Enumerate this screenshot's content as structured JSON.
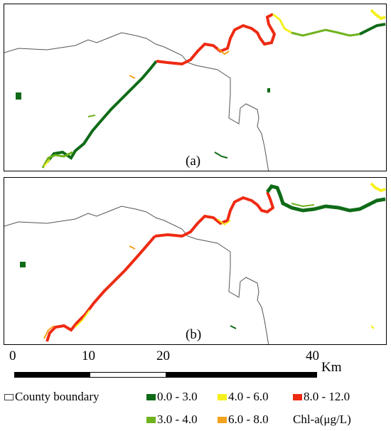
{
  "panels": [
    {
      "label": "(a)"
    },
    {
      "label": "(b)"
    }
  ],
  "scale_bar": {
    "ticks": [
      "0",
      "10",
      "20",
      "40"
    ],
    "unit": "Km"
  },
  "legend": {
    "boundary_label": "County boundary",
    "classes": [
      {
        "label": "0.0 - 3.0",
        "color": "#0f6b17"
      },
      {
        "label": "4.0 - 6.0",
        "color": "#f5f01e"
      },
      {
        "label": "8.0 - 12.0",
        "color": "#ee2a12"
      },
      {
        "label": "3.0 - 4.0",
        "color": "#6fb21d"
      },
      {
        "label": "6.0 - 8.0",
        "color": "#f5a21c"
      }
    ],
    "units_label": "Chl-a(μg/L)"
  },
  "colors": {
    "boundary_line": "#555555",
    "frame": "#000000"
  }
}
